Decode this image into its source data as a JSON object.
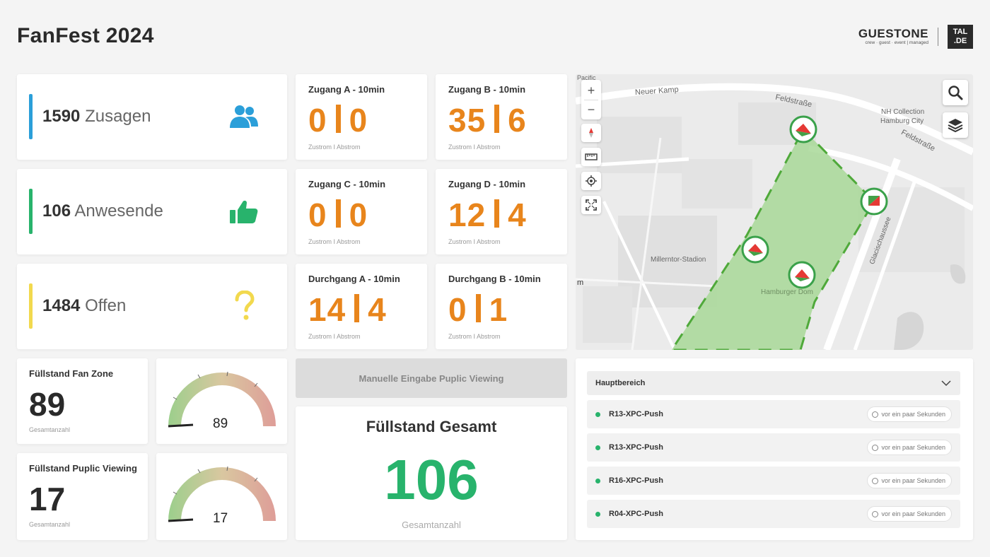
{
  "header": {
    "title": "FanFest 2024"
  },
  "logo": {
    "name": "GUESTONE",
    "tagline": "crew · guest · event | managed",
    "box_line1": "TAL",
    "box_line2": ".DE"
  },
  "stats": [
    {
      "value": "1590",
      "label": "Zusagen",
      "color": "#2b9fd9",
      "icon": "users-icon"
    },
    {
      "value": "106",
      "label": "Anwesende",
      "color": "#28b36c",
      "icon": "thumbs-up-icon"
    },
    {
      "value": "1484",
      "label": "Offen",
      "color": "#f2d94e",
      "icon": "question-icon"
    }
  ],
  "gates": [
    {
      "title": "Zugang A - 10min",
      "inflow": "0",
      "outflow": "0",
      "sub": "Zustrom I Abstrom"
    },
    {
      "title": "Zugang B - 10min",
      "inflow": "35",
      "outflow": "6",
      "sub": "Zustrom I Abstrom"
    },
    {
      "title": "Zugang C - 10min",
      "inflow": "0",
      "outflow": "0",
      "sub": "Zustrom I Abstrom"
    },
    {
      "title": "Zugang D - 10min",
      "inflow": "12",
      "outflow": "4",
      "sub": "Zustrom I Abstrom"
    },
    {
      "title": "Durchgang A - 10min",
      "inflow": "14",
      "outflow": "4",
      "sub": "Zustrom I Abstrom"
    },
    {
      "title": "Durchgang B - 10min",
      "inflow": "0",
      "outflow": "1",
      "sub": "Zustrom I Abstrom"
    }
  ],
  "levels": [
    {
      "title": "Füllstand Fan Zone",
      "value": "89",
      "sub": "Gesamtanzahl",
      "gauge_value": "89"
    },
    {
      "title": "Füllstand Puplic Viewing",
      "value": "17",
      "sub": "Gesamtanzahl",
      "gauge_value": "17"
    }
  ],
  "manual_button": "Manuelle Eingabe Puplic Viewing",
  "total": {
    "title": "Füllstand Gesamt",
    "value": "106",
    "sub": "Gesamtanzahl"
  },
  "map": {
    "labels": {
      "neuer_kamp": "Neuer Kamp",
      "feldstrasse1": "Feldstraße",
      "feldstrasse2": "Feldstraße",
      "nh": "NH Collection",
      "nh2": "Hamburg City",
      "stadion": "Millerntor-Stadion",
      "glacis": "Glacischaussee",
      "hamburger": "Hamburger Dom",
      "pacific": "Pacific",
      "m": "m"
    },
    "zoom_in": "+",
    "zoom_out": "−"
  },
  "devices": {
    "area": "Hauptbereich",
    "items": [
      {
        "name": "R13-XPC-Push",
        "time": "vor ein paar Sekunden"
      },
      {
        "name": "R13-XPC-Push",
        "time": "vor ein paar Sekunden"
      },
      {
        "name": "R16-XPC-Push",
        "time": "vor ein paar Sekunden"
      },
      {
        "name": "R04-XPC-Push",
        "time": "vor ein paar Sekunden"
      }
    ]
  }
}
